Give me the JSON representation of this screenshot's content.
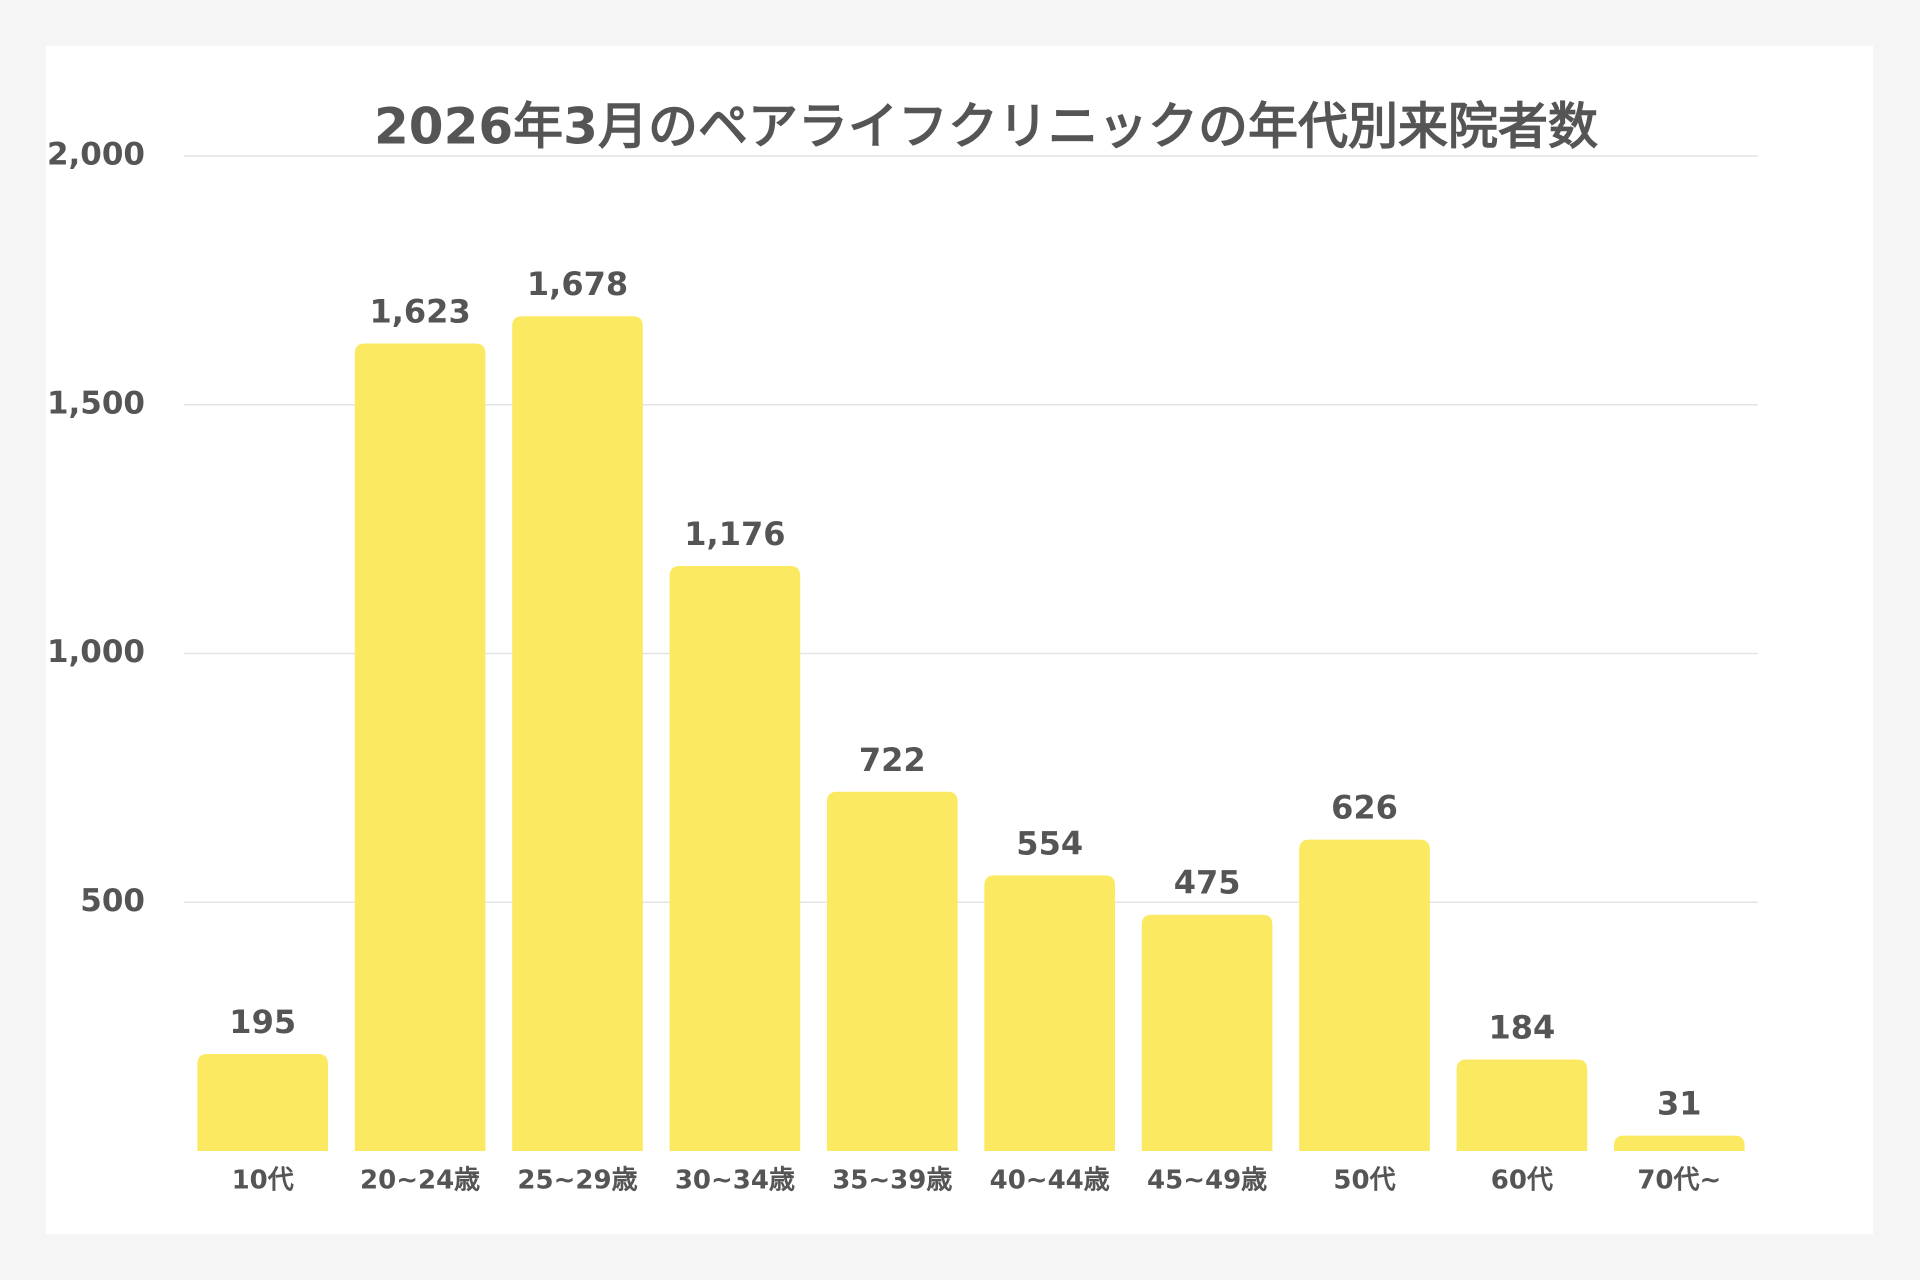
{
  "chart_data": {
    "type": "bar",
    "title": "2026年3月のペアライフクリニックの年代別来院者数",
    "categories": [
      "10代",
      "20~24歳",
      "25~29歳",
      "30~34歳",
      "35~39歳",
      "40~44歳",
      "45~49歳",
      "50代",
      "60代",
      "70代~"
    ],
    "values": [
      195,
      1623,
      1678,
      1176,
      722,
      554,
      475,
      626,
      184,
      31
    ],
    "value_labels": [
      "195",
      "1,623",
      "1,678",
      "1,176",
      "722",
      "554",
      "475",
      "626",
      "184",
      "31"
    ],
    "color": "#fbe961",
    "ylim": [
      0,
      2000
    ],
    "yticks": [
      500,
      {
        "value": 1000,
        "label": "1,000"
      },
      {
        "value": 1500,
        "label": "1,500"
      },
      {
        "value": 2000,
        "label": "2,000"
      }
    ],
    "grid": true
  }
}
